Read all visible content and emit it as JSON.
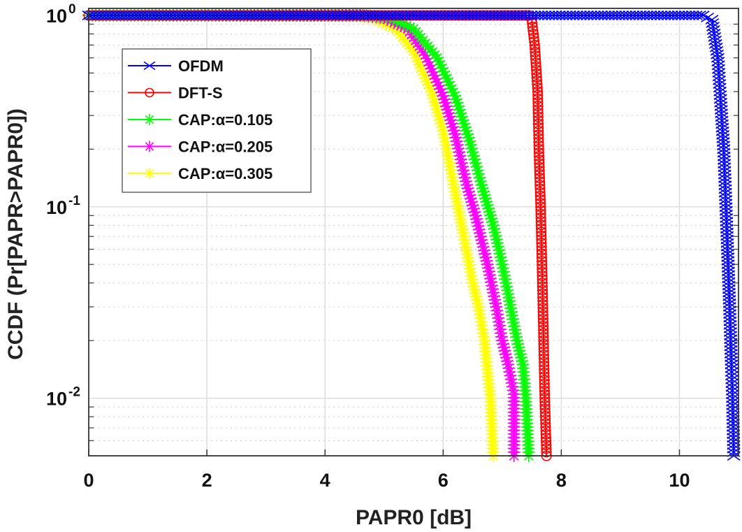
{
  "chart_data": {
    "type": "line",
    "title": "",
    "xlabel": "PAPR0 [dB]",
    "ylabel": "CCDF (Pr[PAPR>PAPR0])",
    "xlim": [
      0,
      11
    ],
    "ylim": [
      0.005,
      1
    ],
    "yscale": "log",
    "grid": true,
    "legend_position": "top-left",
    "xticks": [
      "0",
      "2",
      "4",
      "6",
      "8",
      "10"
    ],
    "xtick_values": [
      0,
      2,
      4,
      6,
      8,
      10
    ],
    "yticks": [
      {
        "base": "10",
        "exp": "0"
      },
      {
        "base": "10",
        "exp": "-1"
      },
      {
        "base": "10",
        "exp": "-2"
      }
    ],
    "ytick_values": [
      1,
      0.1,
      0.01
    ],
    "series": [
      {
        "name": "OFDM",
        "color": "#0000ff",
        "marker": "x",
        "x": [
          0,
          10.4,
          10.55,
          10.65,
          10.7,
          10.75,
          10.8,
          10.85,
          10.88,
          10.9,
          10.92
        ],
        "y": [
          1,
          1,
          0.95,
          0.6,
          0.35,
          0.2,
          0.08,
          0.03,
          0.015,
          0.01,
          0.005
        ]
      },
      {
        "name": "DFT-S",
        "color": "#ff0000",
        "marker": "o",
        "x": [
          0,
          7.45,
          7.5,
          7.55,
          7.6,
          7.62,
          7.65,
          7.68,
          7.7,
          7.72,
          7.75
        ],
        "y": [
          1,
          1,
          0.95,
          0.7,
          0.4,
          0.2,
          0.1,
          0.04,
          0.02,
          0.01,
          0.005
        ]
      },
      {
        "name": "CAP:α=0.105",
        "color": "#00ff00",
        "marker": "*",
        "x": [
          0,
          4.7,
          5.1,
          5.5,
          5.9,
          6.2,
          6.45,
          6.65,
          6.85,
          7.0,
          7.1,
          7.25,
          7.35,
          7.4,
          7.45
        ],
        "y": [
          1,
          1,
          0.97,
          0.85,
          0.6,
          0.38,
          0.22,
          0.13,
          0.08,
          0.05,
          0.035,
          0.02,
          0.015,
          0.01,
          0.005
        ]
      },
      {
        "name": "CAP:α=0.205",
        "color": "#ff00ff",
        "marker": "*",
        "x": [
          0,
          4.6,
          5.0,
          5.4,
          5.7,
          6.0,
          6.2,
          6.4,
          6.55,
          6.75,
          6.9,
          7.0,
          7.1,
          7.2,
          7.2
        ],
        "y": [
          1,
          1,
          0.97,
          0.85,
          0.62,
          0.38,
          0.24,
          0.13,
          0.09,
          0.05,
          0.03,
          0.02,
          0.015,
          0.0105,
          0.005
        ]
      },
      {
        "name": "CAP:α=0.305",
        "color": "#ffff00",
        "marker": "*",
        "x": [
          0,
          4.4,
          4.8,
          5.2,
          5.5,
          5.8,
          6.0,
          6.2,
          6.35,
          6.5,
          6.6,
          6.7,
          6.8,
          6.85
        ],
        "y": [
          1,
          1,
          0.97,
          0.85,
          0.65,
          0.4,
          0.25,
          0.12,
          0.07,
          0.04,
          0.03,
          0.02,
          0.01,
          0.005
        ]
      }
    ]
  }
}
